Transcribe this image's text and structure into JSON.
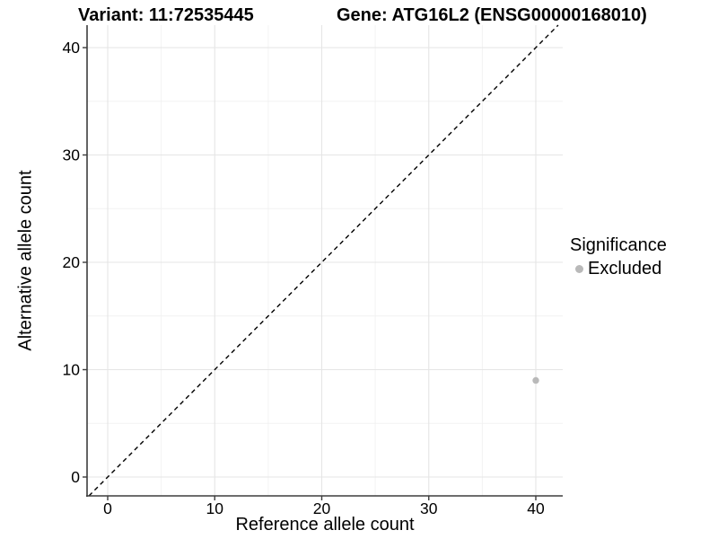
{
  "titles": {
    "variant": "Variant: 11:72535445",
    "gene": "Gene: ATG16L2 (ENSG00000168010)"
  },
  "axes": {
    "x_label": "Reference allele count",
    "y_label": "Alternative allele count"
  },
  "legend": {
    "title": "Significance",
    "items": [
      {
        "label": "Excluded",
        "color": "#b9b9b9"
      }
    ]
  },
  "colors": {
    "background": "#ffffff",
    "axis_line": "#3d3d3d",
    "grid_major": "#e5e5e5",
    "grid_minor": "#f2f2f2",
    "tick_text": "#000000",
    "identity_line": "#000000",
    "excluded_point": "#b9b9b9"
  },
  "chart_data": {
    "type": "scatter",
    "title": "Variant: 11:72535445   Gene: ATG16L2 (ENSG00000168010)",
    "xlabel": "Reference allele count",
    "ylabel": "Alternative allele count",
    "xlim": [
      -2,
      42.5
    ],
    "ylim": [
      -1.8,
      42.1
    ],
    "x_ticks": [
      0,
      10,
      20,
      30,
      40
    ],
    "y_ticks": [
      0,
      10,
      20,
      30,
      40
    ],
    "minor_grid_step": 5,
    "grid": "major+minor",
    "legend_position": "right",
    "series": [
      {
        "name": "Excluded",
        "color": "#b9b9b9",
        "points": [
          [
            40,
            9
          ]
        ]
      }
    ],
    "reference_line": {
      "type": "identity",
      "slope": 1,
      "intercept": 0,
      "style": "dashed",
      "color": "#000000"
    }
  }
}
